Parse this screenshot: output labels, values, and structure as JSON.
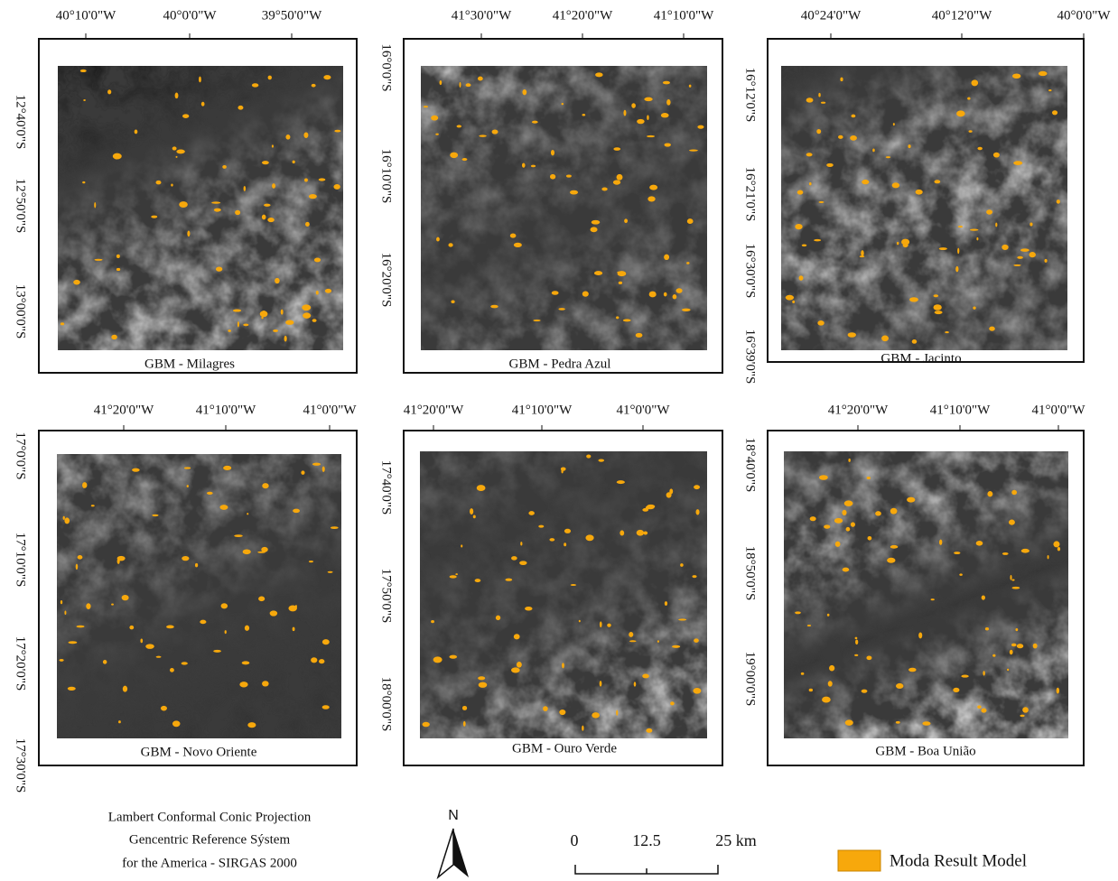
{
  "panels": [
    {
      "caption": "GBM - Milagres",
      "top_labels": [
        "40°10'0\"W",
        "40°0'0\"W",
        "39°50'0\"W"
      ],
      "left_labels": [
        "12°40'0\"S",
        "12°50'0\"S",
        "13°00'0\"S"
      ]
    },
    {
      "caption": "GBM - Pedra Azul",
      "top_labels": [
        "41°30'0\"W",
        "41°20'0\"W",
        "41°10'0\"W"
      ],
      "left_labels": [
        "16°0'0\"S",
        "16°10'0\"S",
        "16°20'0\"S"
      ]
    },
    {
      "caption": "GBM - Jacinto",
      "top_labels": [
        "40°24'0\"W",
        "40°12'0\"W",
        "40°0'0\"W"
      ],
      "left_labels": [
        "16°12'0\"S",
        "16°21'0\"S",
        "16°30'0\"S",
        "16°39'0\"S"
      ]
    },
    {
      "caption": "GBM - Novo Oriente",
      "top_labels": [
        "41°20'0\"W",
        "41°10'0\"W",
        "41°0'0\"W"
      ],
      "left_labels": [
        "17°0'0\"S",
        "17°10'0\"S",
        "17°20'0\"S",
        "17°30'0\"S"
      ]
    },
    {
      "caption": "GBM - Ouro Verde",
      "top_labels": [
        "41°20'0\"W",
        "41°10'0\"W",
        "41°0'0\"W"
      ],
      "left_labels": [
        "17°40'0\"S",
        "17°50'0\"S",
        "18°00'0\"S"
      ]
    },
    {
      "caption": "GBM - Boa União",
      "top_labels": [
        "41°20'0\"W",
        "41°10'0\"W",
        "41°0'0\"W"
      ],
      "left_labels": [
        "18°40'0\"S",
        "18°50'0\"S",
        "19°00'0\"S"
      ]
    }
  ],
  "footer": {
    "lines": [
      "Lambert Conformal Conic Projection",
      "Gencentric Reference Sýstem",
      "for the America - SIRGAS 2000"
    ]
  },
  "north": "N",
  "scale_bar": {
    "labels": [
      "0",
      "12.5",
      "25 km"
    ]
  },
  "legend": {
    "label": "Moda Result Model"
  }
}
